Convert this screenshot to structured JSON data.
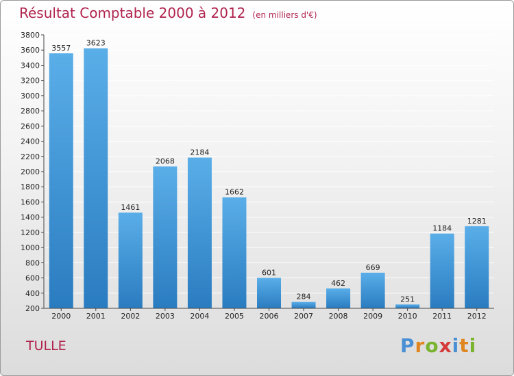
{
  "header": {
    "title": "Résultat Comptable 2000 à 2012",
    "subtitle": "(en milliers d'€)"
  },
  "footer": {
    "city": "TULLE",
    "logo": {
      "letters": [
        {
          "char": "P",
          "color": "#4a8fd4"
        },
        {
          "char": "r",
          "color": "#e0861f"
        },
        {
          "char": "o",
          "color": "#7ab32e"
        },
        {
          "char": "x",
          "color": "#d63b3b"
        },
        {
          "char": "i",
          "color": "#4a8fd4"
        },
        {
          "char": "t",
          "color": "#e0861f"
        },
        {
          "char": "i",
          "color": "#7ab32e"
        }
      ]
    }
  },
  "colors": {
    "accent": "#b0234e",
    "bar_light": "#5aaee8",
    "bar_dark": "#2a7cc0"
  },
  "chart_data": {
    "type": "bar",
    "title": "Résultat Comptable 2000 à 2012",
    "subtitle": "(en milliers d'€)",
    "xlabel": "",
    "ylabel": "",
    "categories": [
      "2000",
      "2001",
      "2002",
      "2003",
      "2004",
      "2005",
      "2006",
      "2007",
      "2008",
      "2009",
      "2010",
      "2011",
      "2012"
    ],
    "values": [
      3557,
      3623,
      1461,
      2068,
      2184,
      1662,
      601,
      284,
      462,
      669,
      251,
      1184,
      1281
    ],
    "ylim": [
      200,
      3800
    ],
    "yticks": [
      200,
      400,
      600,
      800,
      1000,
      1200,
      1400,
      1600,
      1800,
      2000,
      2200,
      2400,
      2600,
      2800,
      3000,
      3200,
      3400,
      3600,
      3800
    ],
    "grid": true
  }
}
